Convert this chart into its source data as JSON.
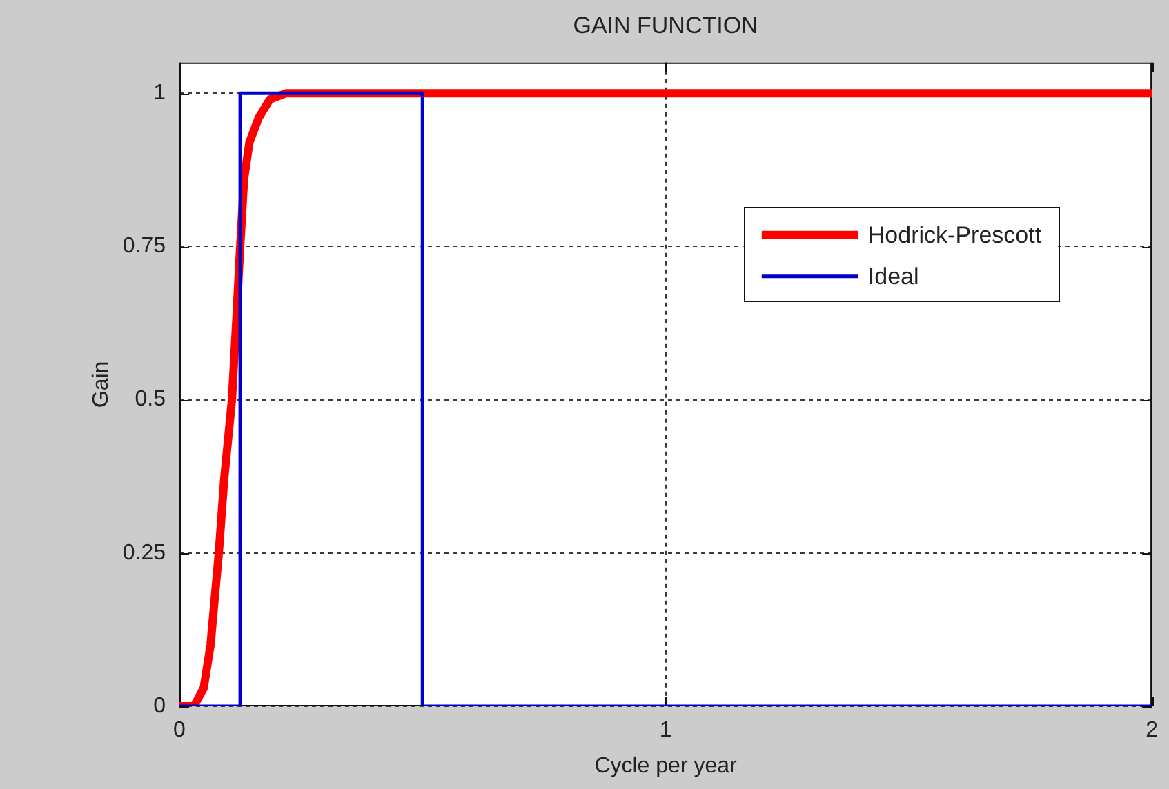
{
  "chart_data": {
    "type": "line",
    "title": "GAIN FUNCTION",
    "xlabel": "Cycle per year",
    "ylabel": "Gain",
    "xlim": [
      0,
      2
    ],
    "xticks": [
      0,
      1,
      2
    ],
    "ylim": [
      0,
      1.05
    ],
    "yticks": [
      0,
      0.25,
      0.5,
      0.75,
      1
    ],
    "grid": true,
    "legend": "top right",
    "series": [
      {
        "name": "Hodrick-Prescott",
        "color": "#ff0000",
        "x": [
          0,
          0.03,
          0.05,
          0.064,
          0.073,
          0.081,
          0.092,
          0.108,
          0.117,
          0.125,
          0.133,
          0.144,
          0.163,
          0.186,
          0.219,
          0.25,
          0.5,
          1,
          1.5,
          2
        ],
        "values": [
          0,
          0,
          0.03,
          0.1,
          0.18,
          0.25,
          0.37,
          0.5,
          0.63,
          0.75,
          0.86,
          0.92,
          0.96,
          0.99,
          1,
          1,
          1,
          1,
          1,
          1
        ]
      },
      {
        "name": "Ideal",
        "color": "#0000cc",
        "x": [
          0,
          0.125,
          0.125,
          0.5,
          0.5,
          2
        ],
        "values": [
          0,
          0,
          1,
          1,
          0,
          0
        ]
      }
    ]
  }
}
